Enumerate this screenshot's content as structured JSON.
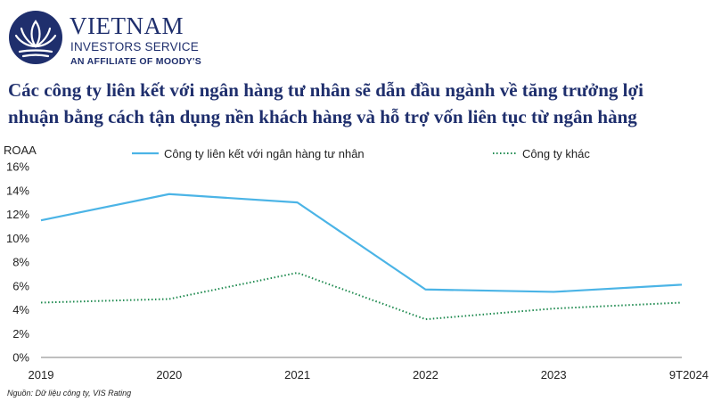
{
  "header": {
    "brand_line1": "VIETNAM",
    "brand_line2": "INVESTORS SERVICE",
    "brand_line3": "AN AFFILIATE OF MOODY'S"
  },
  "title_lines": [
    "Các công ty liên kết với ngân hàng tư nhân sẽ dẫn đầu ngành về tăng trưởng lợi",
    "nhuận bằng cách tận dụng nền khách hàng và hỗ trợ  vốn liên tục từ ngân hàng"
  ],
  "source": "Nguồn: Dữ liệu công ty, VIS Rating",
  "colors": {
    "brand": "#1f2f6d",
    "series_bank": "#4bb4e6",
    "series_other": "#1e8a4f"
  },
  "chart_data": {
    "type": "line",
    "title": "",
    "xlabel": "",
    "ylabel": "ROAA",
    "categories": [
      "2019",
      "2020",
      "2021",
      "2022",
      "2023",
      "9T2024"
    ],
    "ylim": [
      0,
      16
    ],
    "yticks": [
      "0%",
      "2%",
      "4%",
      "6%",
      "8%",
      "10%",
      "12%",
      "14%",
      "16%"
    ],
    "grid": false,
    "legend_position": "top",
    "series": [
      {
        "name": "Công ty liên kết với ngân hàng tư nhân",
        "style": "solid",
        "values": [
          11.5,
          13.7,
          13.0,
          5.7,
          5.5,
          6.1
        ]
      },
      {
        "name": "Công ty khác",
        "style": "dotted",
        "values": [
          4.6,
          4.9,
          7.1,
          3.2,
          4.1,
          4.6
        ]
      }
    ]
  }
}
